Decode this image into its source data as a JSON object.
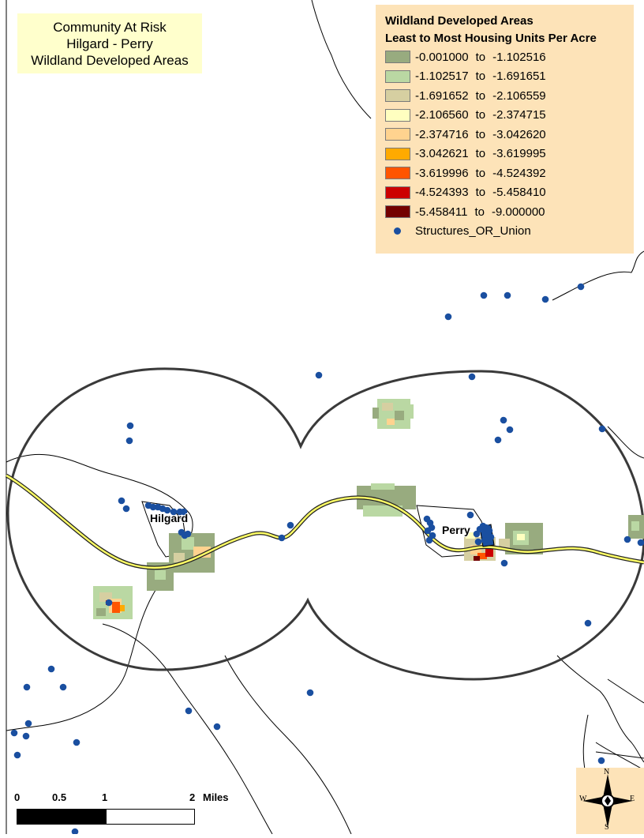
{
  "title": {
    "line1": "Community At Risk",
    "line2": "Hilgard - Perry",
    "line3": "Wildland Developed Areas"
  },
  "legend": {
    "title1": "Wildland Developed Areas",
    "title2": "Least to Most Housing Units Per Acre",
    "classes": [
      {
        "from": "-0.001000",
        "to": "-1.102516",
        "color": "#98ab7f"
      },
      {
        "from": "-1.102517",
        "to": "-1.691651",
        "color": "#bad8a3"
      },
      {
        "from": "-1.691652",
        "to": "-2.106559",
        "color": "#d6cfa1"
      },
      {
        "from": "-2.106560",
        "to": "-2.374715",
        "color": "#ffffc0"
      },
      {
        "from": "-2.374716",
        "to": "-3.042620",
        "color": "#ffd38f"
      },
      {
        "from": "-3.042621",
        "to": "-3.619995",
        "color": "#ffaa00"
      },
      {
        "from": "-3.619996",
        "to": "-4.524392",
        "color": "#ff5500"
      },
      {
        "from": "-4.524393",
        "to": "-5.458410",
        "color": "#cc0000"
      },
      {
        "from": "-5.458411",
        "to": "-9.000000",
        "color": "#730000"
      }
    ],
    "separator": "to",
    "point_label": "Structures_OR_Union"
  },
  "places": {
    "hilgard": "Hilgard",
    "perry": "Perry"
  },
  "scale": {
    "labels": [
      "0",
      "0.5",
      "1",
      "2",
      "Miles"
    ]
  },
  "north": {
    "n": "N",
    "s": "S",
    "e": "E",
    "w": "W"
  },
  "colors": {
    "structure_point": "#1a4fa0",
    "buffer_outline": "#3a3a3a",
    "highway_fill": "#ffff66",
    "legend_bg": "#fde3b8",
    "title_bg": "#ffffcc"
  }
}
